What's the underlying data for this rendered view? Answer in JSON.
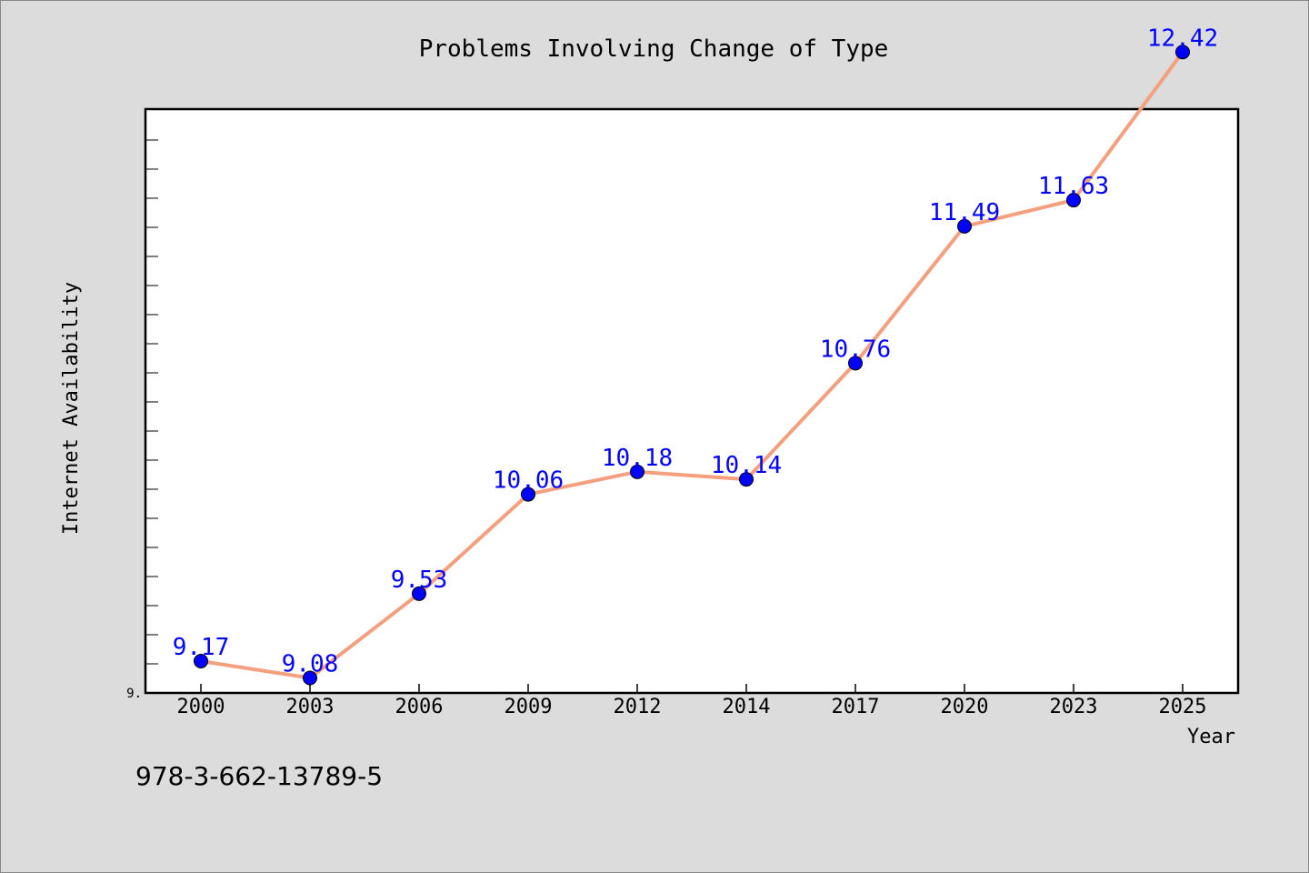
{
  "chart_data": {
    "type": "line",
    "title": "Problems Involving Change of Type",
    "xlabel": "Year",
    "ylabel": "Internet Availability",
    "categories": [
      "2000",
      "2003",
      "2006",
      "2009",
      "2012",
      "2014",
      "2017",
      "2020",
      "2023",
      "2025"
    ],
    "values": [
      9.17,
      9.08,
      9.53,
      10.06,
      10.18,
      10.14,
      10.76,
      11.49,
      11.63,
      12.42
    ],
    "y_tick_labels": [
      "9."
    ],
    "ylim": [
      9.0,
      13.0
    ],
    "grid": false,
    "legend": "none",
    "data_labels": true,
    "colors": {
      "line": "#f4a07e",
      "marker": "#0000ff",
      "label": "#0000ff",
      "background": "#dcdcdc",
      "plot_background": "#ffffff"
    }
  },
  "footer": {
    "isbn": "978-3-662-13789-5"
  }
}
